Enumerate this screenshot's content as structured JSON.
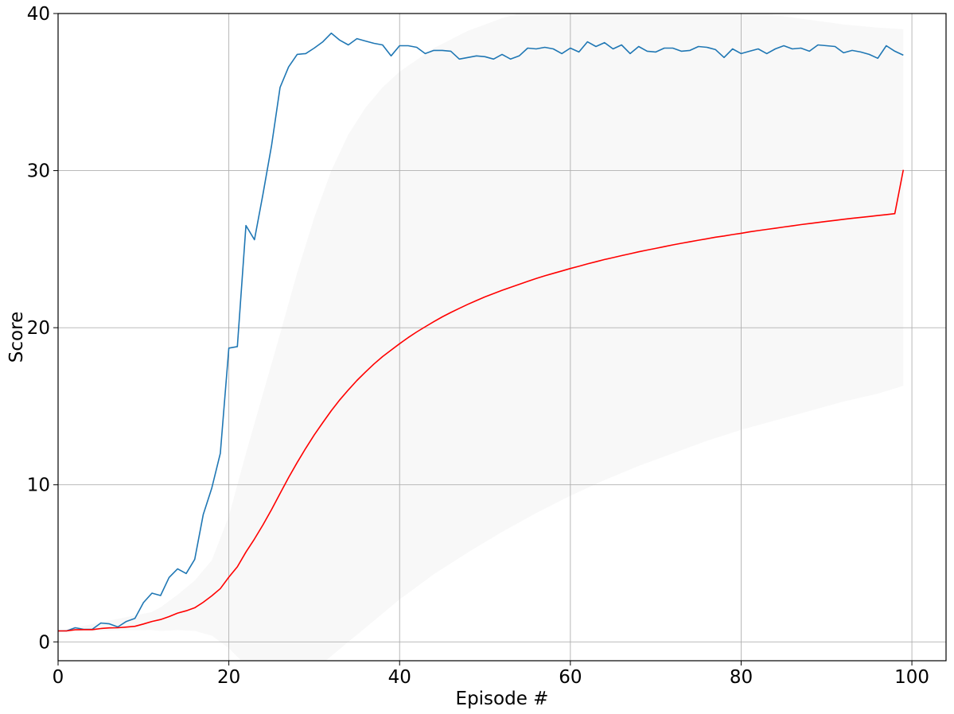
{
  "chart_data": {
    "type": "line",
    "title": "",
    "xlabel": "Episode #",
    "ylabel": "Score",
    "xlim": [
      0,
      104
    ],
    "ylim": [
      -1.2,
      40
    ],
    "xticks": [
      0,
      20,
      40,
      60,
      80,
      100
    ],
    "yticks": [
      0,
      10,
      20,
      30,
      40
    ],
    "grid": true,
    "legend": "none",
    "colors": {
      "score": "#1f77b4",
      "average": "#ff0000",
      "band": "#f8f8f8",
      "grid": "#b0b0b0"
    },
    "series": [
      {
        "key": "score",
        "x": [
          0,
          1,
          2,
          3,
          4,
          5,
          6,
          7,
          8,
          9,
          10,
          11,
          12,
          13,
          14,
          15,
          16,
          17,
          18,
          19,
          20,
          21,
          22,
          23,
          24,
          25,
          26,
          27,
          28,
          29,
          30,
          31,
          32,
          33,
          34,
          35,
          36,
          37,
          38,
          39,
          40,
          41,
          42,
          43,
          44,
          45,
          46,
          47,
          48,
          49,
          50,
          51,
          52,
          53,
          54,
          55,
          56,
          57,
          58,
          59,
          60,
          61,
          62,
          63,
          64,
          65,
          66,
          67,
          68,
          69,
          70,
          71,
          72,
          73,
          74,
          75,
          76,
          77,
          78,
          79,
          80,
          81,
          82,
          83,
          84,
          85,
          86,
          87,
          88,
          89,
          90,
          91,
          92,
          93,
          94,
          95,
          96,
          97,
          98,
          99
        ],
        "values": [
          0.7,
          0.7,
          0.9,
          0.8,
          0.8,
          1.2,
          1.15,
          0.95,
          1.3,
          1.5,
          2.5,
          3.1,
          2.95,
          4.1,
          4.65,
          4.35,
          5.25,
          8.1,
          9.8,
          12.0,
          18.7,
          18.8,
          26.5,
          25.6,
          28.5,
          31.6,
          35.3,
          36.6,
          37.4,
          37.45,
          37.8,
          38.2,
          38.75,
          38.3,
          38.0,
          38.4,
          38.25,
          38.1,
          38.0,
          37.3,
          37.95,
          37.95,
          37.85,
          37.45,
          37.65,
          37.65,
          37.6,
          37.1,
          37.2,
          37.3,
          37.25,
          37.1,
          37.4,
          37.1,
          37.3,
          37.8,
          37.75,
          37.85,
          37.75,
          37.45,
          37.8,
          37.55,
          38.2,
          37.9,
          38.15,
          37.75,
          38.0,
          37.45,
          37.9,
          37.6,
          37.55,
          37.8,
          37.8,
          37.6,
          37.65,
          37.9,
          37.85,
          37.7,
          37.2,
          37.75,
          37.45,
          37.6,
          37.75,
          37.45,
          37.75,
          37.95,
          37.75,
          37.8,
          37.6,
          38.0,
          37.95,
          37.9,
          37.5,
          37.65,
          37.55,
          37.4,
          37.15,
          37.95,
          37.6,
          37.35
        ]
      },
      {
        "key": "average",
        "x": [
          0,
          1,
          2,
          3,
          4,
          5,
          6,
          7,
          8,
          9,
          10,
          11,
          12,
          13,
          14,
          15,
          16,
          17,
          18,
          19,
          20,
          21,
          22,
          23,
          24,
          25,
          26,
          27,
          28,
          29,
          30,
          31,
          32,
          33,
          34,
          35,
          36,
          37,
          38,
          39,
          40,
          41,
          42,
          43,
          44,
          45,
          46,
          47,
          48,
          49,
          50,
          51,
          52,
          53,
          54,
          55,
          56,
          57,
          58,
          59,
          60,
          61,
          62,
          63,
          64,
          65,
          66,
          67,
          68,
          69,
          70,
          71,
          72,
          73,
          74,
          75,
          76,
          77,
          78,
          79,
          80,
          81,
          82,
          83,
          84,
          85,
          86,
          87,
          88,
          89,
          90,
          91,
          92,
          93,
          94,
          95,
          96,
          97,
          98,
          99
        ],
        "values": [
          0.7,
          0.7,
          0.77,
          0.78,
          0.78,
          0.85,
          0.89,
          0.9,
          0.94,
          0.99,
          1.14,
          1.3,
          1.42,
          1.61,
          1.83,
          1.98,
          2.17,
          2.52,
          2.93,
          3.39,
          4.12,
          4.78,
          5.72,
          6.55,
          7.45,
          8.42,
          9.45,
          10.46,
          11.42,
          12.32,
          13.17,
          13.96,
          14.72,
          15.41,
          16.04,
          16.64,
          17.18,
          17.69,
          18.16,
          18.57,
          18.98,
          19.37,
          19.73,
          20.06,
          20.38,
          20.69,
          20.97,
          21.23,
          21.49,
          21.73,
          21.96,
          22.17,
          22.38,
          22.57,
          22.76,
          22.95,
          23.13,
          23.3,
          23.46,
          23.61,
          23.77,
          23.91,
          24.06,
          24.2,
          24.34,
          24.46,
          24.59,
          24.71,
          24.83,
          24.94,
          25.05,
          25.16,
          25.27,
          25.37,
          25.47,
          25.57,
          25.66,
          25.76,
          25.84,
          25.93,
          26.01,
          26.1,
          26.18,
          26.26,
          26.33,
          26.41,
          26.48,
          26.56,
          26.63,
          26.7,
          26.77,
          26.83,
          26.9,
          26.96,
          27.02,
          27.08,
          27.14,
          27.2,
          27.26,
          30.05
        ]
      }
    ],
    "band": {
      "x": [
        0,
        11,
        12,
        14,
        16,
        18,
        20,
        22,
        24,
        26,
        28,
        30,
        32,
        34,
        36,
        38,
        40,
        44,
        48,
        52,
        56,
        60,
        64,
        68,
        72,
        76,
        80,
        84,
        88,
        92,
        96,
        99
      ],
      "lower": [
        0.7,
        0.75,
        0.7,
        0.75,
        0.7,
        0.4,
        -0.4,
        -1.5,
        -2.8,
        -3.2,
        -2.6,
        -1.8,
        -0.9,
        0.0,
        0.9,
        1.8,
        2.7,
        4.3,
        5.7,
        7.0,
        8.2,
        9.3,
        10.3,
        11.2,
        12.0,
        12.8,
        13.5,
        14.1,
        14.7,
        15.3,
        15.8,
        16.3
      ],
      "upper": [
        0.7,
        1.9,
        2.2,
        3.0,
        3.9,
        5.2,
        8.0,
        12.0,
        15.8,
        19.6,
        23.5,
        27.0,
        30.0,
        32.3,
        34.0,
        35.3,
        36.3,
        37.8,
        38.9,
        39.7,
        40.3,
        40.7,
        41.0,
        41.0,
        40.8,
        40.5,
        40.2,
        39.9,
        39.6,
        39.3,
        39.1,
        39.0
      ]
    }
  }
}
